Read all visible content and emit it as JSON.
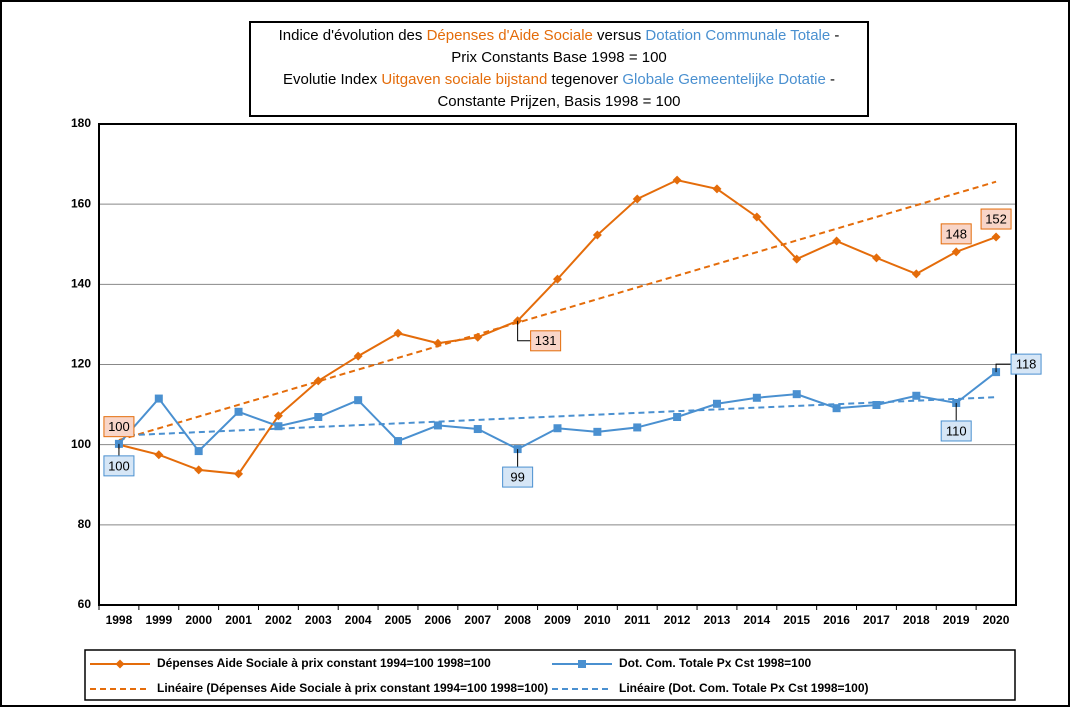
{
  "chart_data": {
    "type": "line",
    "title": [
      [
        {
          "text": "Indice d'évolution des ",
          "color": "#000000"
        },
        {
          "text": "Dépenses d'Aide Sociale",
          "color": "#e46c0a"
        },
        {
          "text": " versus ",
          "color": "#000000"
        },
        {
          "text": "Dotation Communale Totale",
          "color": "#4a90d0"
        },
        {
          "text": " -",
          "color": "#000000"
        }
      ],
      [
        {
          "text": "Prix Constants Base 1998 = 100",
          "color": "#000000"
        }
      ],
      [
        {
          "text": "Evolutie Index ",
          "color": "#000000"
        },
        {
          "text": "Uitgaven sociale bijstand",
          "color": "#e46c0a"
        },
        {
          "text": " tegenover ",
          "color": "#000000"
        },
        {
          "text": "Globale Gemeentelijke Dotatie",
          "color": "#4a90d0"
        },
        {
          "text": " -",
          "color": "#000000"
        }
      ],
      [
        {
          "text": "Constante Prijzen, Basis 1998 = 100",
          "color": "#000000"
        }
      ]
    ],
    "categories": [
      "1998",
      "1999",
      "2000",
      "2001",
      "2002",
      "2003",
      "2004",
      "2005",
      "2006",
      "2007",
      "2008",
      "2009",
      "2010",
      "2011",
      "2012",
      "2013",
      "2014",
      "2015",
      "2016",
      "2017",
      "2018",
      "2019",
      "2020"
    ],
    "series": [
      {
        "name": "Dépenses Aide Sociale à prix constant 1994=100 1998=100",
        "color": "#e46c0a",
        "marker": "diamond",
        "values": [
          100,
          97.5,
          93.7,
          92.7,
          107.2,
          115.9,
          122.1,
          127.8,
          125.3,
          126.8,
          130.9,
          141.3,
          152.3,
          161.3,
          166.0,
          163.8,
          156.8,
          146.3,
          150.8,
          146.6,
          142.6,
          148.1,
          151.8
        ],
        "value_labels": [
          "100",
          null,
          null,
          null,
          null,
          null,
          null,
          null,
          null,
          null,
          "131",
          null,
          null,
          null,
          null,
          null,
          null,
          null,
          null,
          null,
          null,
          "148",
          "152"
        ],
        "trend": {
          "name": "Linéaire (Dépenses Aide Sociale à prix constant 1994=100 1998=100)",
          "color": "#e46c0a"
        }
      },
      {
        "name": "Dot. Com. Totale Px Cst 1998=100",
        "color": "#4a90d0",
        "marker": "square",
        "values": [
          100.2,
          111.5,
          98.4,
          108.2,
          104.6,
          106.9,
          111.1,
          100.9,
          104.8,
          103.9,
          98.9,
          104.1,
          103.2,
          104.3,
          106.9,
          110.2,
          111.7,
          112.6,
          109.1,
          109.9,
          112.2,
          110.4,
          118.1
        ],
        "value_labels": [
          "100",
          null,
          null,
          null,
          null,
          null,
          null,
          null,
          null,
          null,
          "99",
          null,
          null,
          null,
          null,
          null,
          null,
          null,
          null,
          null,
          null,
          "110",
          "118"
        ],
        "trend": {
          "name": "Linéaire (Dot. Com. Totale Px Cst 1998=100)",
          "color": "#4a90d0"
        }
      }
    ],
    "ylim": [
      60,
      180
    ],
    "yticks": [
      60,
      80,
      100,
      120,
      140,
      160,
      180
    ],
    "grid": true
  }
}
